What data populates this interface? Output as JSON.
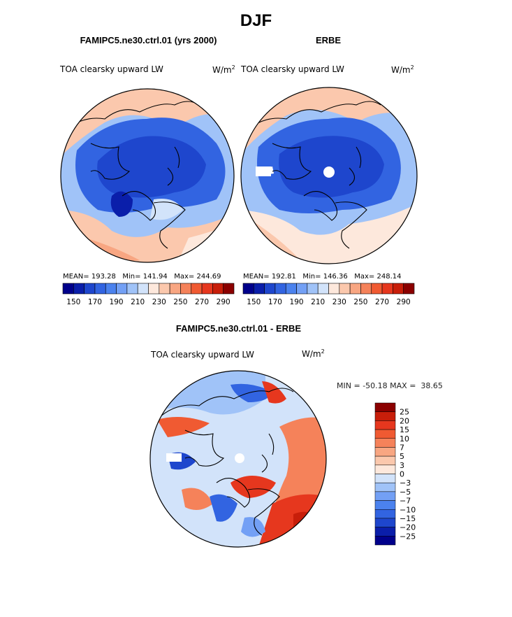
{
  "page": {
    "title": "DJF"
  },
  "colors": {
    "scale": [
      "#00008b",
      "#0a1eaa",
      "#1e46cd",
      "#3264e1",
      "#4b82ee",
      "#73a0f5",
      "#a0c3f8",
      "#d2e3fa",
      "#fde8dc",
      "#fbc8ad",
      "#f8a682",
      "#f5825a",
      "#f05a32",
      "#e6371e",
      "#c81e0a",
      "#8b0000"
    ],
    "diff": [
      "#00008b",
      "#0a1eaa",
      "#1e46cd",
      "#3264e1",
      "#4b82ee",
      "#73a0f5",
      "#a0c3f8",
      "#d2e3fa",
      "#fde8dc",
      "#fbc8ad",
      "#f8a682",
      "#f5825a",
      "#f05a32",
      "#e6371e",
      "#c81e0a",
      "#8b0000"
    ]
  },
  "chart_data": [
    {
      "type": "heatmap",
      "projection": "north-polar-stereographic",
      "title": "FAMIPC5.ne30.ctrl.01 (yrs 2000)",
      "variable": "TOA clearsky upward LW",
      "units_base": "W/m",
      "units_exp": "2",
      "stats": {
        "mean_label": "MEAN=",
        "mean": "193.28",
        "min_label": "Min=",
        "min": "141.94",
        "max_label": "Max=",
        "max": "244.69"
      },
      "colorbar_ticks": [
        "150",
        "170",
        "190",
        "210",
        "230",
        "250",
        "270",
        "290"
      ],
      "levels": [
        140,
        150,
        160,
        170,
        180,
        190,
        200,
        210,
        220,
        230,
        240,
        250,
        260,
        270,
        280,
        290,
        300
      ]
    },
    {
      "type": "heatmap",
      "projection": "north-polar-stereographic",
      "title": "ERBE",
      "variable": "TOA clearsky upward LW",
      "units_base": "W/m",
      "units_exp": "2",
      "stats": {
        "mean_label": "MEAN=",
        "mean": "192.81",
        "min_label": "Min=",
        "min": "146.36",
        "max_label": "Max=",
        "max": "248.14"
      },
      "colorbar_ticks": [
        "150",
        "170",
        "190",
        "210",
        "230",
        "250",
        "270",
        "290"
      ],
      "levels": [
        140,
        150,
        160,
        170,
        180,
        190,
        200,
        210,
        220,
        230,
        240,
        250,
        260,
        270,
        280,
        290,
        300
      ]
    },
    {
      "type": "heatmap",
      "projection": "north-polar-stereographic",
      "title": "FAMIPC5.ne30.ctrl.01 - ERBE",
      "variable": "TOA clearsky upward LW",
      "units_base": "W/m",
      "units_exp": "2",
      "stats": {
        "min_label": "MIN =",
        "min": "-50.18",
        "max_label": "MAX =",
        "max": "38.65"
      },
      "colorbar_ticks": [
        "25",
        "20",
        "15",
        "10",
        "7",
        "5",
        "3",
        "0",
        "−3",
        "−5",
        "−7",
        "−10",
        "−15",
        "−20",
        "−25"
      ]
    }
  ]
}
